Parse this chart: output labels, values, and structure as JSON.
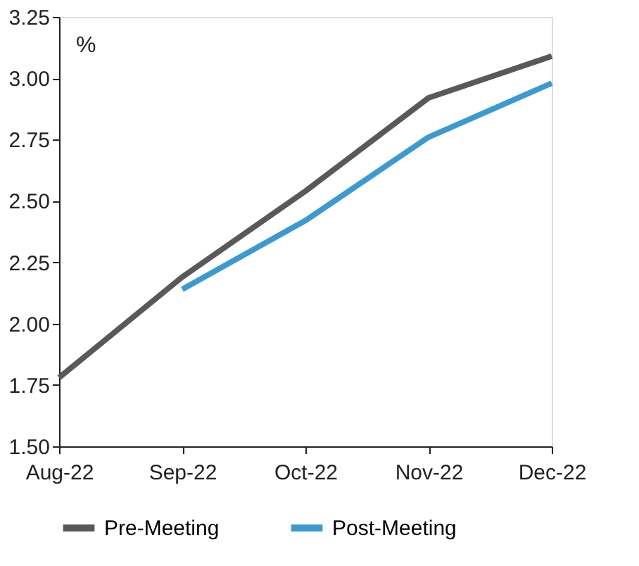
{
  "chart_data": {
    "type": "line",
    "ylabel": "%",
    "categories": [
      "Aug-22",
      "Sep-22",
      "Oct-22",
      "Nov-22",
      "Dec-22"
    ],
    "series": [
      {
        "name": "Pre-Meeting",
        "color": "#595959",
        "values": [
          1.78,
          2.19,
          2.54,
          2.92,
          3.09
        ]
      },
      {
        "name": "Post-Meeting",
        "color": "#3d9ad1",
        "values": [
          null,
          2.14,
          2.42,
          2.76,
          2.98
        ]
      }
    ],
    "ylim": [
      1.5,
      3.25
    ],
    "yticks": [
      {
        "value": 1.5,
        "label": "1.50"
      },
      1.75,
      {
        "value": 2.0,
        "label": "2.00"
      },
      2.25,
      {
        "value": 2.5,
        "label": "2.50"
      },
      2.75,
      {
        "value": 3.0,
        "label": "3.00"
      },
      3.25
    ],
    "grid": false,
    "legend": "bottom",
    "marker": "none",
    "line_style": "solid"
  }
}
